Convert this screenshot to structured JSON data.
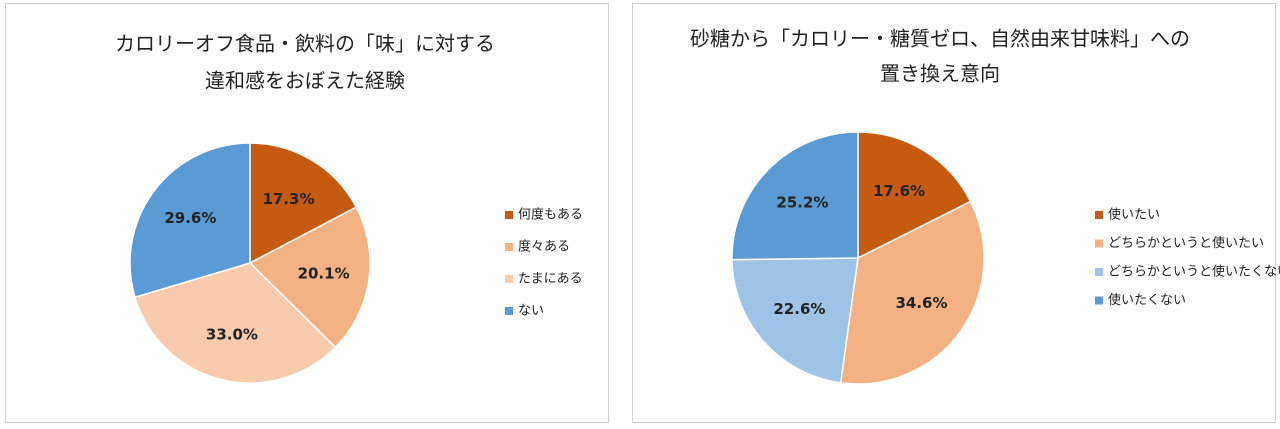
{
  "chart_data": [
    {
      "type": "pie",
      "title": [
        "カロリーオフ食品・飲料の「味」に対する",
        "違和感をおぼえた経験"
      ],
      "categories": [
        "何度もある",
        "度々ある",
        "たまにある",
        "ない"
      ],
      "values": [
        17.3,
        20.1,
        33.0,
        29.6
      ],
      "value_labels": [
        "17.3%",
        "20.1%",
        "33.0%",
        "29.6%"
      ],
      "colors": [
        "#c55a11",
        "#f4b183",
        "#f8cbad",
        "#5b9bd5"
      ],
      "legend": "right"
    },
    {
      "type": "pie",
      "title": [
        "砂糖から「カロリー・糖質ゼロ、自然由来甘味料」への",
        "置き換え意向"
      ],
      "categories": [
        "使いたい",
        "どちらかというと使いたい",
        "どちらかというと使いたくない",
        "使いたくない"
      ],
      "values": [
        17.6,
        34.6,
        22.6,
        25.2
      ],
      "value_labels": [
        "17.6%",
        "34.6%",
        "22.6%",
        "25.2%"
      ],
      "colors": [
        "#c55a11",
        "#f4b183",
        "#9dc3e6",
        "#5b9bd5"
      ],
      "legend": "right"
    }
  ]
}
